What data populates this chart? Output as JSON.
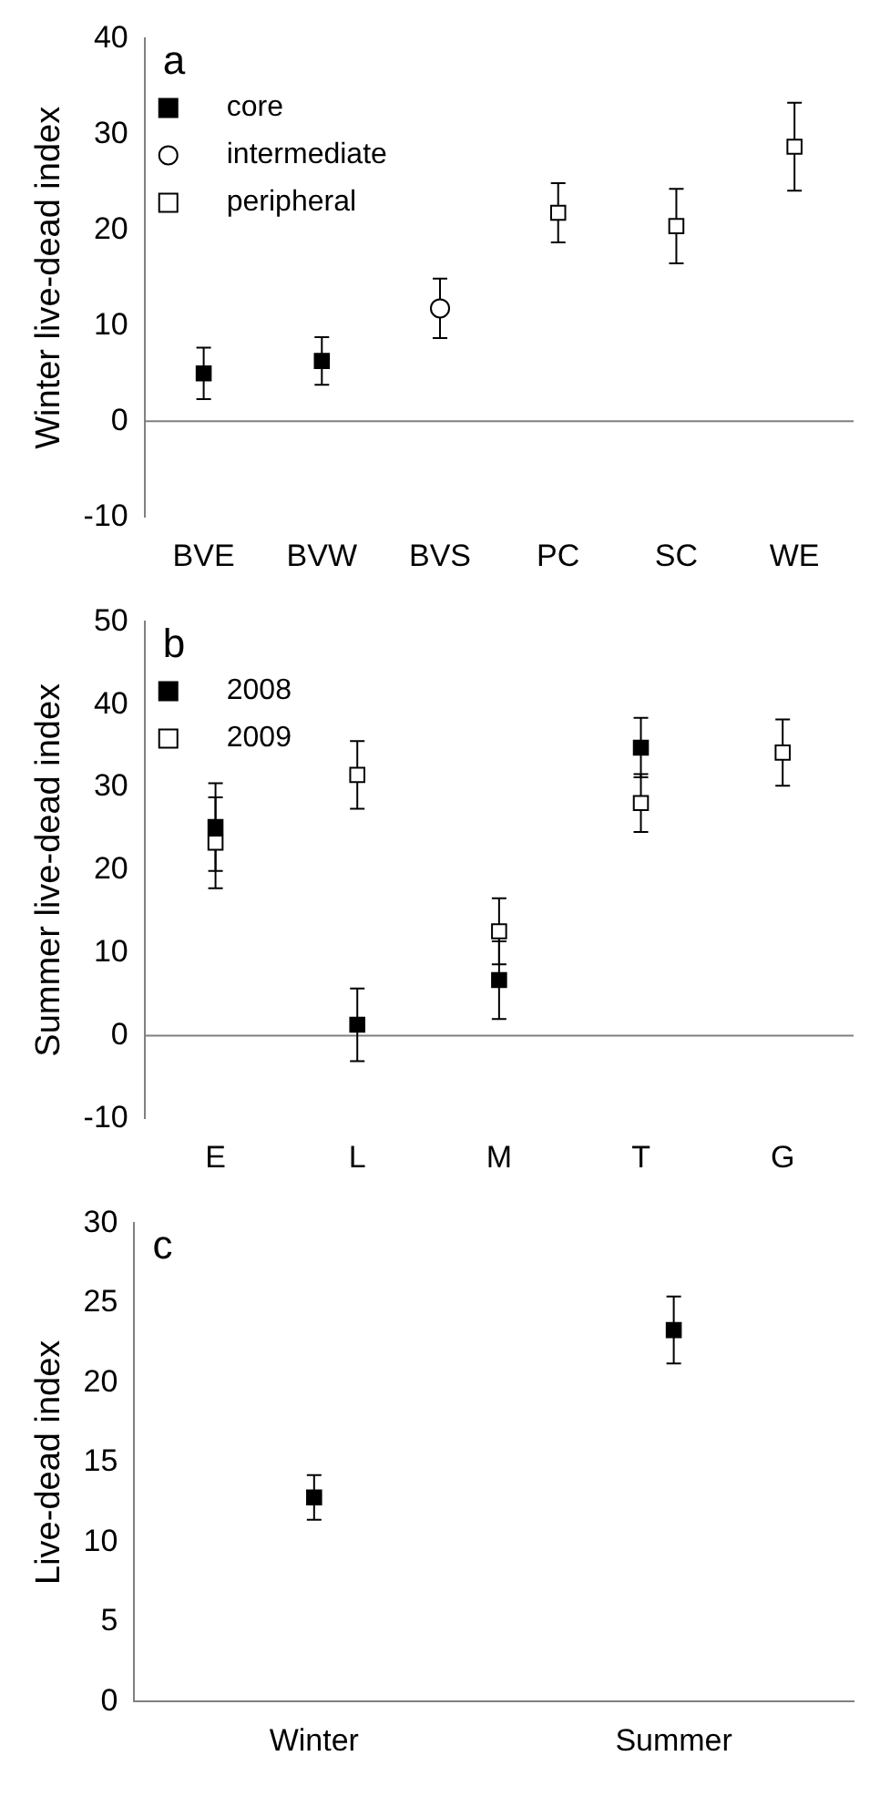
{
  "chart_data": [
    {
      "type": "scatter",
      "ylabel": "Winter live-dead index",
      "annotations": [
        "a"
      ],
      "categories": [
        "BVE",
        "BVW",
        "BVS",
        "PC",
        "SC",
        "WE"
      ],
      "ylim": [
        -10,
        40
      ],
      "yticks": [
        -10,
        0,
        10,
        20,
        30,
        40
      ],
      "grid": false,
      "legend": "top left",
      "ref_lines": [
        {
          "axis": "y",
          "value": 0,
          "color": "#808080"
        }
      ],
      "series": [
        {
          "name": "core",
          "color": "#000000",
          "marker": "square",
          "values": [
            5.0,
            6.3,
            null,
            null,
            null,
            null
          ],
          "errors": [
            2.7,
            2.5,
            null,
            null,
            null,
            null
          ]
        },
        {
          "name": "intermediate",
          "color": "#ffffff",
          "marker": "circle",
          "values": [
            null,
            null,
            11.8,
            null,
            null,
            null
          ],
          "errors": [
            null,
            null,
            3.1,
            null,
            null,
            null
          ]
        },
        {
          "name": "peripheral",
          "color": "#ffffff",
          "marker": "square",
          "values": [
            null,
            null,
            null,
            21.8,
            20.4,
            28.7
          ],
          "errors": [
            null,
            null,
            null,
            3.1,
            3.9,
            4.6
          ]
        }
      ]
    },
    {
      "type": "scatter",
      "ylabel": "Summer live-dead index",
      "annotations": [
        "b"
      ],
      "categories": [
        "E",
        "L",
        "M",
        "T",
        "G"
      ],
      "ylim": [
        -10,
        50
      ],
      "yticks": [
        -10,
        0,
        10,
        20,
        30,
        40,
        50
      ],
      "grid": false,
      "legend": "top left",
      "ref_lines": [
        {
          "axis": "y",
          "value": 0,
          "color": "#808080"
        }
      ],
      "series": [
        {
          "name": "2008",
          "color": "#000000",
          "marker": "square",
          "values": [
            25.2,
            1.3,
            6.7,
            34.8,
            null
          ],
          "errors": [
            5.3,
            4.4,
            4.7,
            3.6,
            null
          ]
        },
        {
          "name": "2009",
          "color": "#ffffff",
          "marker": "square",
          "values": [
            23.3,
            31.5,
            12.6,
            28.1,
            34.2
          ],
          "errors": [
            5.5,
            4.1,
            4.0,
            3.5,
            4.0
          ]
        }
      ]
    },
    {
      "type": "scatter",
      "ylabel": "Live-dead index",
      "annotations": [
        "c"
      ],
      "categories": [
        "Winter",
        "Summer"
      ],
      "ylim": [
        0,
        30
      ],
      "yticks": [
        0,
        5,
        10,
        15,
        20,
        25,
        30
      ],
      "grid": false,
      "legend": false,
      "series": [
        {
          "color": "#000000",
          "marker": "square",
          "values": [
            12.8,
            23.3
          ],
          "errors": [
            1.4,
            2.1
          ]
        }
      ]
    }
  ]
}
